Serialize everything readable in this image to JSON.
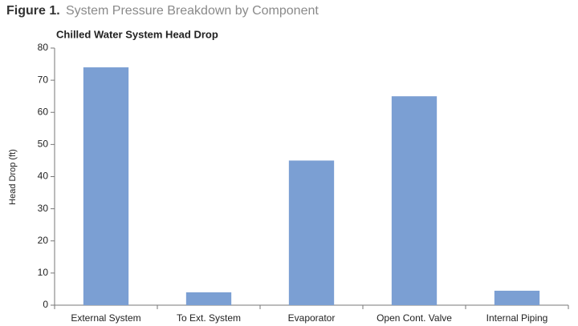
{
  "chart_data": {
    "type": "bar",
    "figure_label": "Figure 1.",
    "caption": "System Pressure Breakdown by Component",
    "title": "Chilled Water System Head Drop",
    "y_label": "Head Drop (ft)",
    "categories": [
      "External System",
      "To Ext. System",
      "Evaporator",
      "Open Cont. Valve",
      "Internal Piping"
    ],
    "values": [
      74,
      4,
      45,
      65,
      4.5
    ],
    "color": "#7b9fd3",
    "ylim": [
      0,
      80
    ],
    "yticks": [
      0,
      10,
      20,
      30,
      40,
      50,
      60,
      70,
      80
    ],
    "grid": false
  }
}
